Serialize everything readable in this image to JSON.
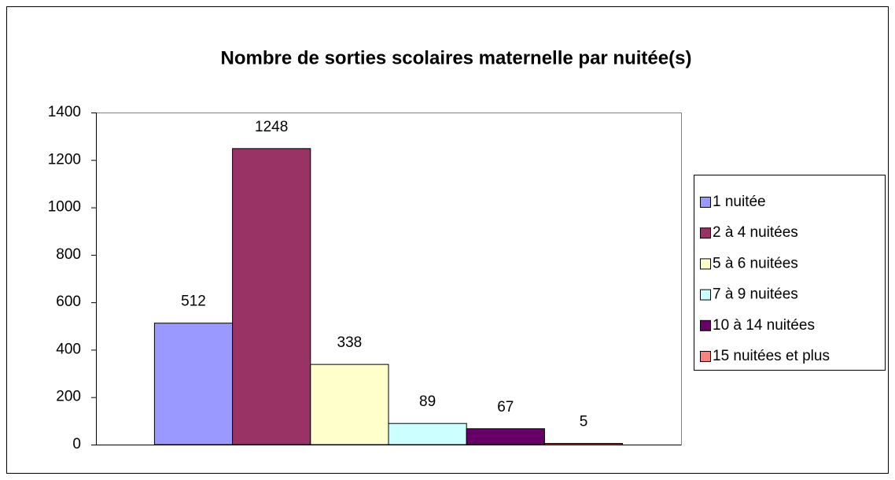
{
  "chart_data": {
    "type": "bar",
    "title": "Nombre de sorties scolaires maternelle par nuitée(s)",
    "categories": [
      null
    ],
    "series": [
      {
        "name": "1 nuitée",
        "color": "#9999ff",
        "values": [
          512
        ]
      },
      {
        "name": "2 à 4 nuitées",
        "color": "#993366",
        "values": [
          1248
        ]
      },
      {
        "name": "5 à 6 nuitées",
        "color": "#ffffcc",
        "values": [
          338
        ]
      },
      {
        "name": "7 à 9 nuitées",
        "color": "#ccffff",
        "values": [
          89
        ]
      },
      {
        "name": "10 à 14 nuitées",
        "color": "#660066",
        "values": [
          67
        ]
      },
      {
        "name": "15 nuitées et plus",
        "color": "#ff8080",
        "values": [
          5
        ]
      }
    ],
    "ylim": [
      0,
      1400
    ],
    "yticks": [
      0,
      200,
      400,
      600,
      800,
      1000,
      1200,
      1400
    ],
    "grid": false,
    "legend": "right"
  }
}
